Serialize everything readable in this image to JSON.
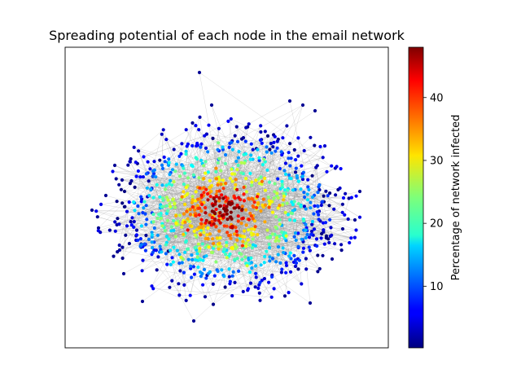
{
  "title": "Spreading potential of each node in the email network",
  "colorbar": {
    "label": "Percentage of network infected",
    "ticks": [
      "10",
      "20",
      "30",
      "40"
    ],
    "tick_values": [
      10,
      20,
      30,
      40
    ],
    "range": [
      0.2,
      48
    ],
    "colormap": "jet"
  },
  "network": {
    "node_color_min": "#00008f",
    "node_color_max": "#800000",
    "edge_color": "#9a9a9a",
    "node_count_estimate": 1100
  }
}
